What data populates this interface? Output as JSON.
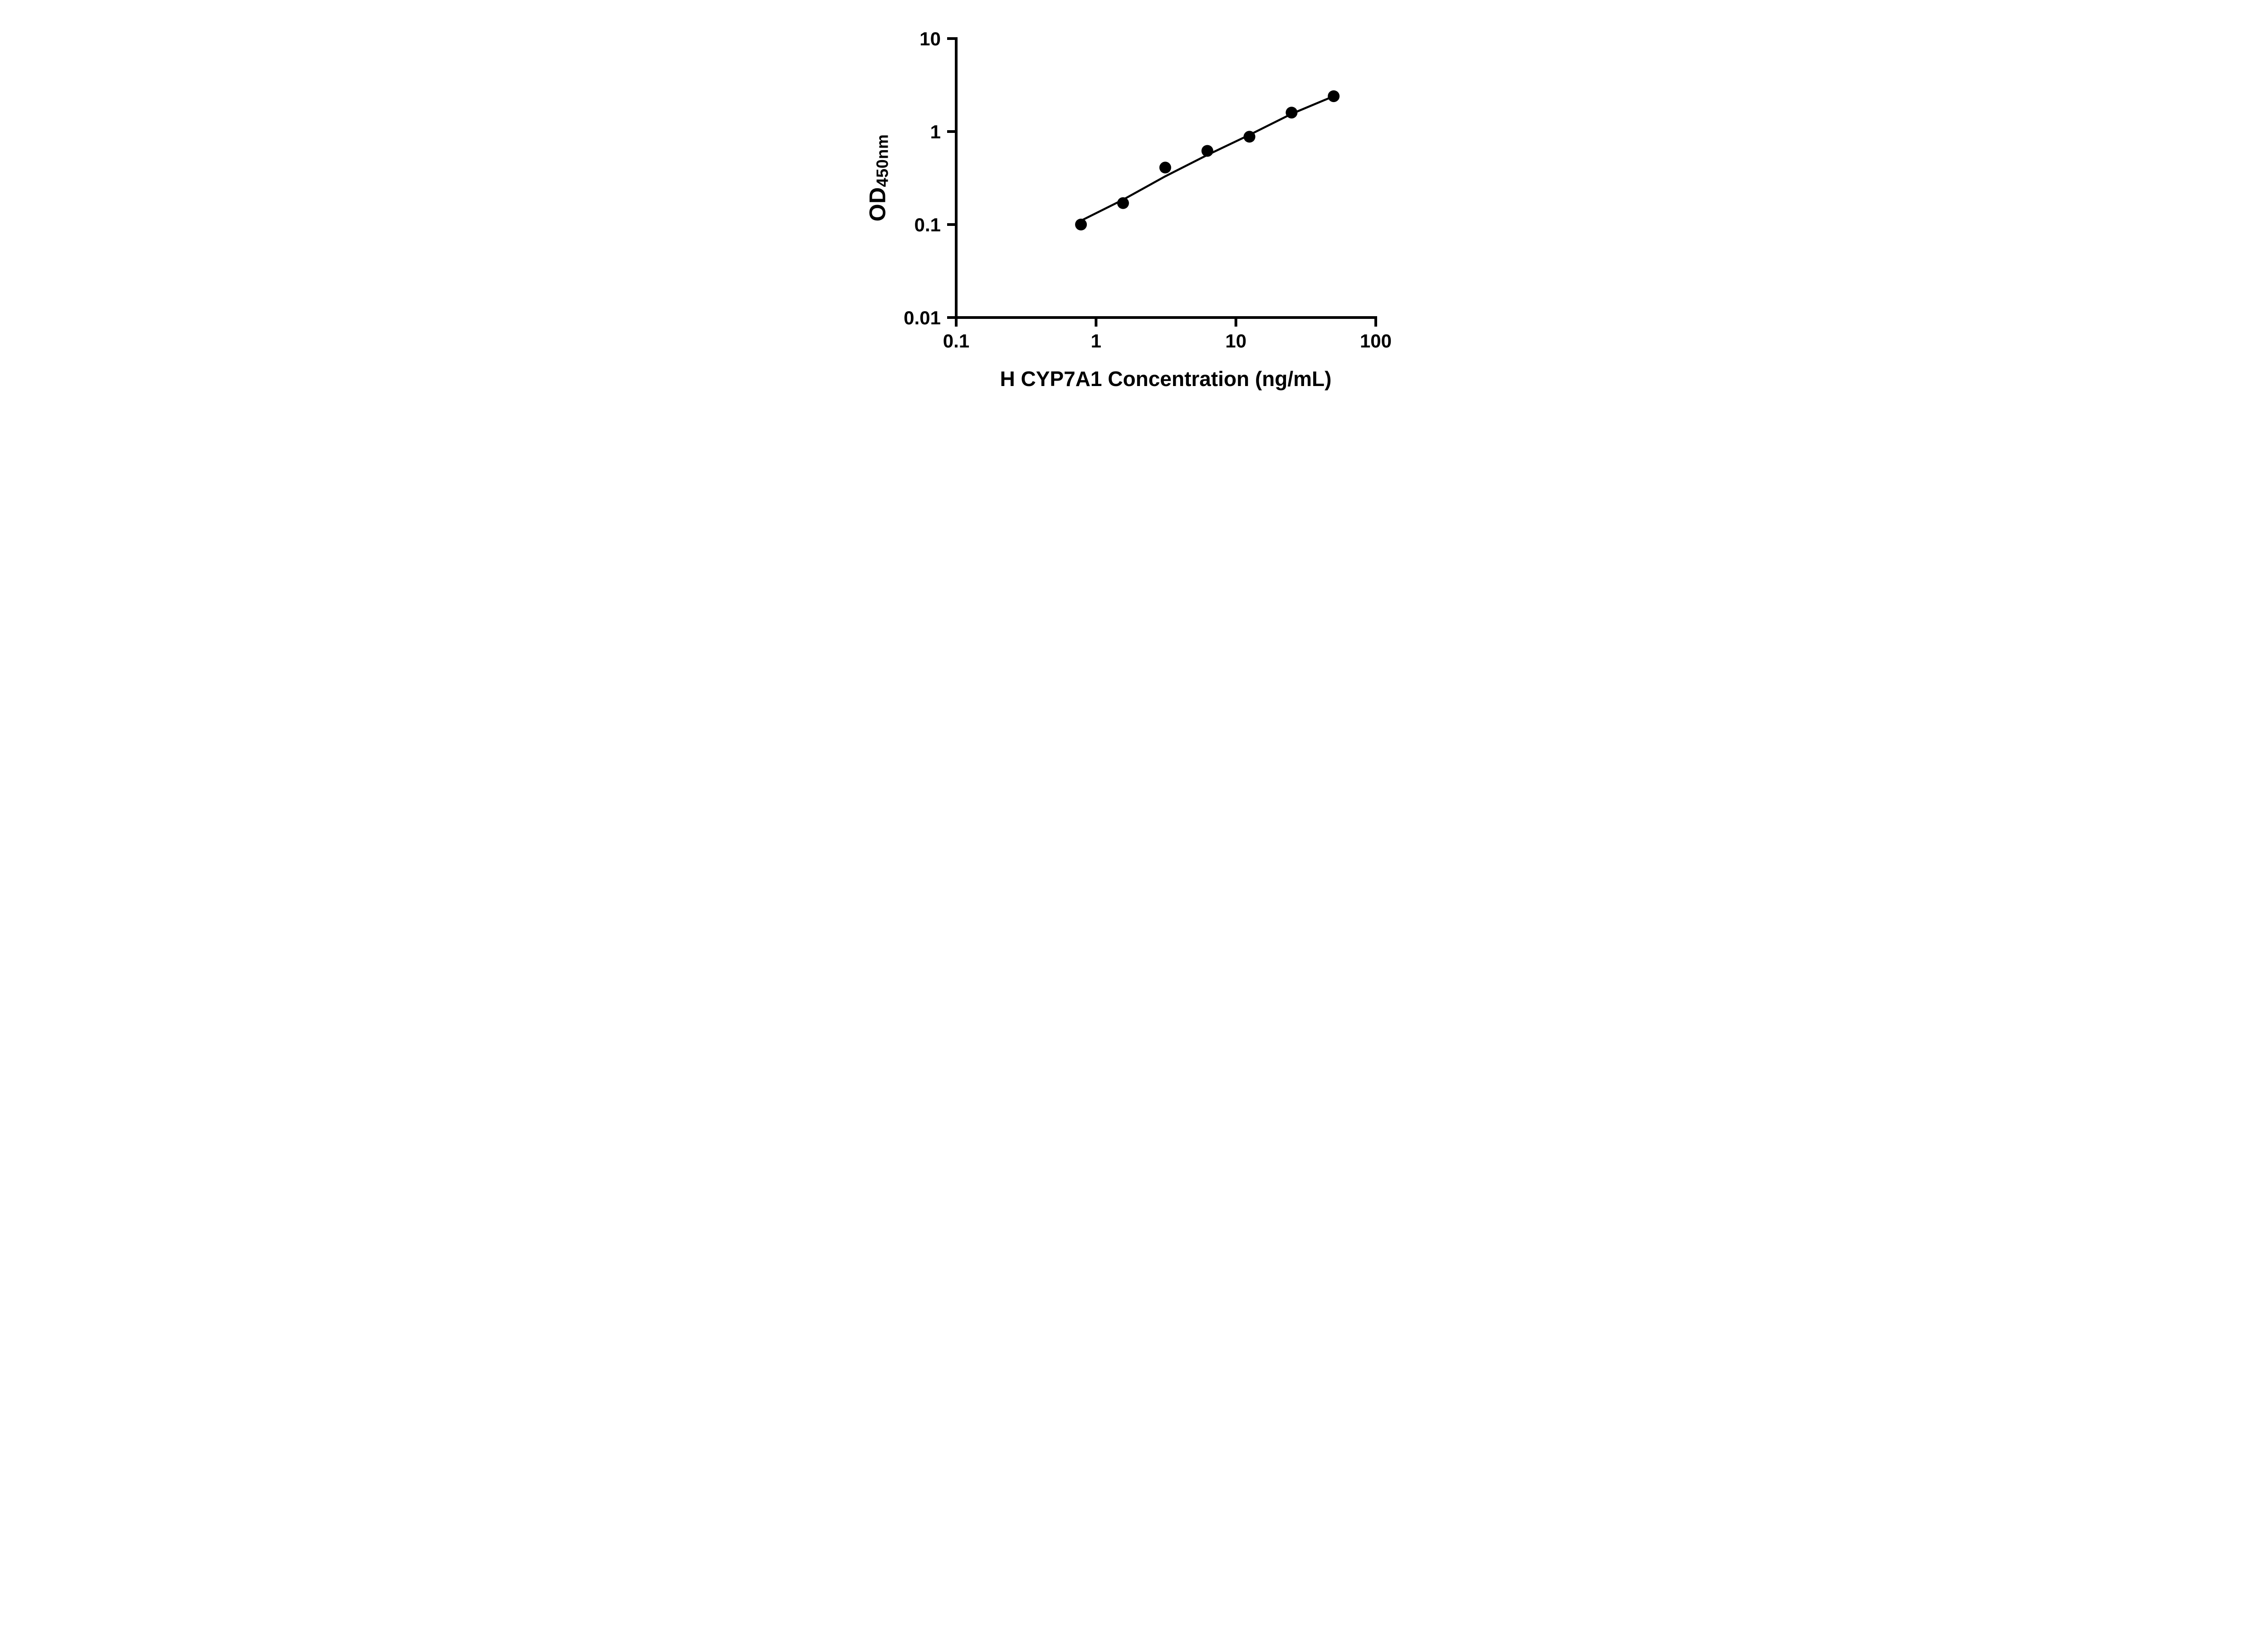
{
  "chart_data": {
    "type": "scatter",
    "title": "",
    "xlabel": "H CYP7A1 Concentration (ng/mL)",
    "ylabel_main": "OD",
    "ylabel_sub": "450nm",
    "x_scale": "log",
    "y_scale": "log",
    "xlim": [
      0.1,
      100
    ],
    "ylim": [
      0.01,
      10
    ],
    "x_ticks": [
      0.1,
      1,
      10,
      100
    ],
    "x_tick_labels": [
      "0.1",
      "1",
      "10",
      "100"
    ],
    "y_ticks": [
      0.01,
      0.1,
      1,
      10
    ],
    "y_tick_labels": [
      "0.01",
      "0.1",
      "1",
      "10"
    ],
    "grid": false,
    "legend": null,
    "marker_color": "#000000",
    "line_color": "#000000",
    "background_color": "#ffffff",
    "points": [
      {
        "x": 0.78,
        "y": 0.1
      },
      {
        "x": 1.56,
        "y": 0.17
      },
      {
        "x": 3.125,
        "y": 0.41
      },
      {
        "x": 6.25,
        "y": 0.62
      },
      {
        "x": 12.5,
        "y": 0.88
      },
      {
        "x": 25,
        "y": 1.6
      },
      {
        "x": 50,
        "y": 2.4
      }
    ],
    "fit_line": [
      {
        "x": 0.8,
        "y": 0.112
      },
      {
        "x": 1.56,
        "y": 0.185
      },
      {
        "x": 3.125,
        "y": 0.33
      },
      {
        "x": 6.25,
        "y": 0.56
      },
      {
        "x": 12.5,
        "y": 0.92
      },
      {
        "x": 25,
        "y": 1.55
      },
      {
        "x": 50,
        "y": 2.4
      }
    ]
  }
}
